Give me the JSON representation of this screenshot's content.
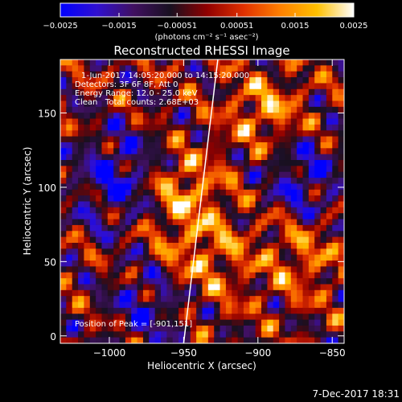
{
  "chart_data": {
    "type": "heatmap",
    "title": "Reconstructed RHESSI Image",
    "xlabel": "Heliocentric X (arcsec)",
    "ylabel": "Heliocentric Y (arcsec)",
    "xlim": [
      -1033,
      -842
    ],
    "ylim": [
      -5,
      186
    ],
    "x_ticks": [
      -1000,
      -950,
      -900,
      -850
    ],
    "x_tick_labels": [
      "−1000",
      "−950",
      "−900",
      "−850"
    ],
    "y_ticks": [
      0,
      50,
      100,
      150
    ],
    "y_tick_labels": [
      "0",
      "50",
      "100",
      "150"
    ],
    "colorbar": {
      "min": -0.0025,
      "max": 0.0025,
      "ticks": [
        -0.0025,
        -0.0015,
        -0.00051,
        0.00051,
        0.0015,
        0.0025
      ],
      "tick_labels": [
        "−0.0025",
        "−0.0015",
        "−0.00051",
        "0.00051",
        "0.0015",
        "0.0025"
      ],
      "units_label": "(photons cm⁻² s⁻¹ asec⁻²)",
      "colors": [
        "#0000ff",
        "#3010d0",
        "#401060",
        "#181020",
        "#900000",
        "#e03000",
        "#ff8000",
        "#ffc000",
        "#ffffff"
      ]
    },
    "annotations": [
      "1-Jun-2017 14:05:20.000 to 14:15:20.000",
      "Detectors: 3F 6F 8F, Att 0",
      "Energy Range: 12.0 - 25.0 keV",
      "Clean   Total counts: 2.68E+03"
    ],
    "peak_label": "Position of Peak = [-901,151]",
    "limb_line": {
      "x": [
        -950,
        -927
      ],
      "y": [
        -5,
        186
      ]
    }
  },
  "footer": {
    "timestamp": "7-Dec-2017 18:31"
  }
}
